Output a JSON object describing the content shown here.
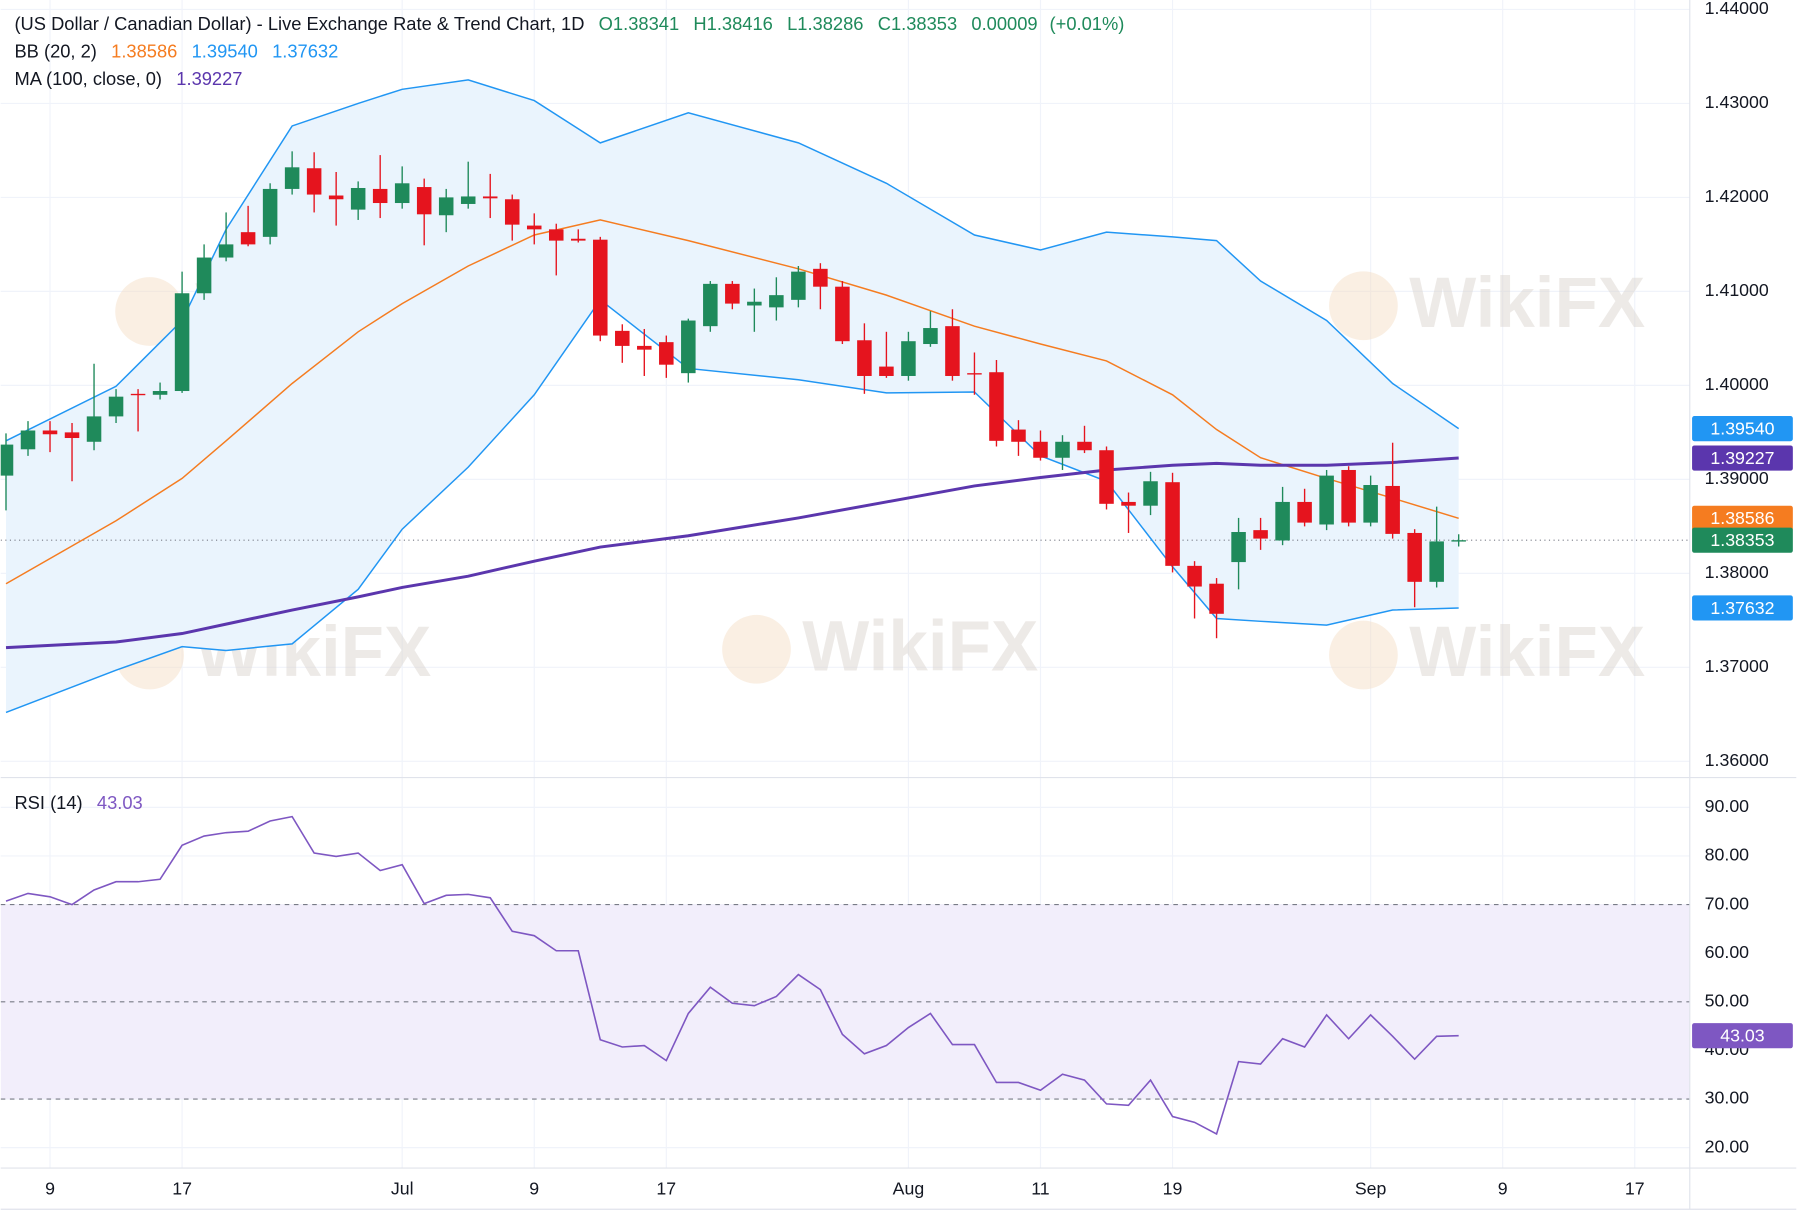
{
  "watermark": "WikiFX",
  "chart_data": [
    {
      "type": "candlestick",
      "title": "(US Dollar / Canadian Dollar) - Live Exchange Rate & Trend Chart, 1D",
      "quote": {
        "open": {
          "value": 1.38341,
          "label": "O1.38341"
        },
        "high": {
          "value": 1.38416,
          "label": "H1.38416"
        },
        "low": {
          "value": 1.38286,
          "label": "L1.38286"
        },
        "close": {
          "value": 1.38353,
          "label": "C1.38353"
        },
        "change": 9e-05,
        "change_percent": {
          "value": 0.01,
          "label": "(+0.01%)"
        }
      },
      "open": [
        1.3904,
        1.3932,
        1.3952,
        1.395,
        1.394,
        1.3967,
        1.3991,
        1.399,
        1.3994,
        1.4098,
        1.4136,
        1.4163,
        1.4158,
        1.4209,
        1.4231,
        1.4202,
        1.4187,
        1.4209,
        1.4194,
        1.4211,
        1.4181,
        1.4193,
        1.4201,
        1.4198,
        1.417,
        1.4166,
        1.4156,
        1.4155,
        1.4058,
        1.4042,
        1.4046,
        1.4013,
        1.4063,
        1.4108,
        1.4085,
        1.4083,
        1.4091,
        1.4124,
        1.4105,
        1.4048,
        1.402,
        1.401,
        1.4044,
        1.4063,
        1.4013,
        1.4014,
        1.3953,
        1.394,
        1.3923,
        1.394,
        1.3931,
        1.3876,
        1.3872,
        1.3897,
        1.3808,
        1.3789,
        1.3812,
        1.3846,
        1.3835,
        1.3876,
        1.3852,
        1.391,
        1.3854,
        1.3893,
        1.3843,
        1.3791,
        1.38341
      ],
      "high": [
        1.3949,
        1.3962,
        1.3962,
        1.396,
        1.4023,
        1.3996,
        1.3996,
        1.4003,
        1.4121,
        1.415,
        1.4184,
        1.4191,
        1.4215,
        1.4249,
        1.4248,
        1.4227,
        1.4217,
        1.4245,
        1.4233,
        1.422,
        1.4209,
        1.4238,
        1.4225,
        1.4203,
        1.4183,
        1.4172,
        1.4166,
        1.4158,
        1.4065,
        1.406,
        1.4053,
        1.4071,
        1.4111,
        1.4111,
        1.4103,
        1.4115,
        1.4127,
        1.413,
        1.4111,
        1.4066,
        1.4057,
        1.4057,
        1.4079,
        1.4081,
        1.4035,
        1.4027,
        1.3963,
        1.3952,
        1.3947,
        1.3957,
        1.3935,
        1.3886,
        1.3908,
        1.3907,
        1.3813,
        1.3795,
        1.3859,
        1.3859,
        1.3892,
        1.389,
        1.391,
        1.3914,
        1.3904,
        1.3939,
        1.3847,
        1.3871,
        1.38416
      ],
      "low": [
        1.3867,
        1.3925,
        1.3929,
        1.3898,
        1.3931,
        1.396,
        1.3951,
        1.3985,
        1.3992,
        1.4091,
        1.4132,
        1.4148,
        1.415,
        1.4203,
        1.4184,
        1.417,
        1.4176,
        1.4178,
        1.4188,
        1.4149,
        1.4163,
        1.4188,
        1.4178,
        1.4154,
        1.415,
        1.4117,
        1.4152,
        1.4047,
        1.4024,
        1.401,
        1.4008,
        1.4003,
        1.4057,
        1.4081,
        1.4057,
        1.4069,
        1.4083,
        1.4081,
        1.4044,
        1.3991,
        1.4008,
        1.4005,
        1.4041,
        1.4005,
        1.399,
        1.3935,
        1.3925,
        1.392,
        1.391,
        1.3928,
        1.3868,
        1.3843,
        1.3862,
        1.3801,
        1.3752,
        1.3731,
        1.3783,
        1.3825,
        1.383,
        1.385,
        1.3846,
        1.385,
        1.385,
        1.3837,
        1.3764,
        1.3785,
        1.38286
      ],
      "close": [
        1.3937,
        1.3952,
        1.3948,
        1.3944,
        1.3967,
        1.3988,
        1.399,
        1.3994,
        1.4098,
        1.4136,
        1.415,
        1.415,
        1.4209,
        1.4232,
        1.4203,
        1.4198,
        1.421,
        1.4194,
        1.4215,
        1.4182,
        1.42,
        1.4201,
        1.4199,
        1.4171,
        1.4166,
        1.4154,
        1.4154,
        1.4053,
        1.4042,
        1.4038,
        1.4022,
        1.4069,
        1.4108,
        1.4087,
        1.4089,
        1.4096,
        1.4121,
        1.4105,
        1.4047,
        1.401,
        1.401,
        1.4047,
        1.4061,
        1.401,
        1.4012,
        1.3941,
        1.394,
        1.3923,
        1.394,
        1.3931,
        1.3874,
        1.3872,
        1.3898,
        1.3808,
        1.3786,
        1.3757,
        1.3844,
        1.3837,
        1.3876,
        1.3854,
        1.3904,
        1.3854,
        1.3894,
        1.3842,
        1.3791,
        1.3834,
        1.38353
      ],
      "up_color": "#1f8a5b",
      "down_color": "#e5141e",
      "quote_color": "#1f8a5b",
      "overlays": [
        {
          "name": "BB (20, 2)",
          "band_fill": "#eaf4fd",
          "lines": [
            {
              "color": "#f57c20",
              "x": [
                0,
                5,
                8,
                10,
                13,
                16,
                18,
                21,
                24,
                27,
                31,
                36,
                40,
                44,
                47,
                50,
                53,
                55,
                57,
                60,
                63,
                66
              ],
              "values": [
                1.3789,
                1.3856,
                1.3901,
                1.3941,
                1.4002,
                1.4057,
                1.4087,
                1.4127,
                1.416,
                1.4176,
                1.4154,
                1.4124,
                1.4096,
                1.4063,
                1.4044,
                1.4026,
                1.399,
                1.3953,
                1.3923,
                1.3901,
                1.388,
                1.38586
              ],
              "last": 1.38586
            },
            {
              "color": "#2196f3",
              "x": [
                0,
                5,
                8,
                10,
                13,
                16,
                18,
                21,
                24,
                27,
                31,
                36,
                40,
                44,
                47,
                50,
                53,
                55,
                57,
                60,
                63,
                66
              ],
              "values": [
                1.3941,
                1.3999,
                1.4069,
                1.4166,
                1.4276,
                1.43,
                1.4315,
                1.4325,
                1.4303,
                1.4258,
                1.429,
                1.4258,
                1.4215,
                1.416,
                1.4144,
                1.4163,
                1.4158,
                1.4154,
                1.4111,
                1.4069,
                1.4002,
                1.3954
              ],
              "last": {
                "value": 1.3954,
                "label": "1.39540"
              }
            },
            {
              "color": "#2196f3",
              "x": [
                0,
                5,
                8,
                10,
                13,
                16,
                18,
                21,
                24,
                27,
                31,
                36,
                40,
                44,
                47,
                50,
                53,
                55,
                57,
                60,
                63,
                66
              ],
              "values": [
                1.3652,
                1.3697,
                1.3722,
                1.3718,
                1.3725,
                1.3783,
                1.3847,
                1.3913,
                1.399,
                1.4091,
                1.4018,
                1.4006,
                1.3992,
                1.3993,
                1.3925,
                1.3898,
                1.3807,
                1.3752,
                1.3749,
                1.3745,
                1.3761,
                1.37632
              ],
              "last": {
                "value": 1.37632,
                "label": "1.37632"
              }
            }
          ]
        },
        {
          "name": "MA (100, close, 0)",
          "lines": [
            {
              "color": "#5b36ad",
              "x": [
                0,
                5,
                8,
                10,
                13,
                16,
                18,
                21,
                24,
                27,
                31,
                36,
                40,
                44,
                47,
                50,
                53,
                55,
                57,
                60,
                63,
                66
              ],
              "values": [
                1.3721,
                1.3727,
                1.3736,
                1.3746,
                1.3761,
                1.3775,
                1.3785,
                1.3797,
                1.3813,
                1.3828,
                1.384,
                1.3859,
                1.3876,
                1.3893,
                1.3902,
                1.391,
                1.3915,
                1.3917,
                1.3915,
                1.3915,
                1.3918,
                1.39227
              ],
              "last": 1.39227
            }
          ]
        }
      ],
      "ylim": [
        1.3584,
        1.441
      ],
      "yticks": [
        {
          "value": 1.36,
          "label": "1.36000"
        },
        {
          "value": 1.37,
          "label": "1.37000"
        },
        {
          "value": 1.38,
          "label": "1.38000"
        },
        {
          "value": 1.39,
          "label": "1.39000"
        },
        {
          "value": 1.4,
          "label": "1.40000"
        },
        {
          "value": 1.41,
          "label": "1.41000"
        },
        {
          "value": 1.42,
          "label": "1.42000"
        },
        {
          "value": 1.43,
          "label": "1.43000"
        },
        {
          "value": 1.44,
          "label": "1.44000"
        }
      ],
      "grid": true
    },
    {
      "type": "line",
      "series": [
        {
          "name": "RSI (14)",
          "color": "#7e57c2",
          "values": [
            70.7,
            72.3,
            71.6,
            70.0,
            73.0,
            74.7,
            74.7,
            75.2,
            82.2,
            84.1,
            84.8,
            85.1,
            87.2,
            88.1,
            80.6,
            79.9,
            80.6,
            77.0,
            78.2,
            70.2,
            71.9,
            72.1,
            71.4,
            64.5,
            63.6,
            60.5,
            60.5,
            42.2,
            40.7,
            41.0,
            37.9,
            47.6,
            53.0,
            49.7,
            49.2,
            51.1,
            55.6,
            52.5,
            43.3,
            39.3,
            41.0,
            44.7,
            47.6,
            41.2,
            41.2,
            33.4,
            33.4,
            31.8,
            35.1,
            33.9,
            29.0,
            28.7,
            33.9,
            26.4,
            25.2,
            22.8,
            37.7,
            37.2,
            42.4,
            40.7,
            47.3,
            42.4,
            47.3,
            42.9,
            38.2,
            42.9,
            43.03
          ]
        }
      ],
      "levels": [
        30,
        50,
        70
      ],
      "band_color": "#f2eefb",
      "ylim": [
        15.8,
        95.9
      ],
      "yticks": [
        {
          "value": 20,
          "label": "20.00"
        },
        {
          "value": 30,
          "label": "30.00"
        },
        {
          "value": 40,
          "label": "40.00"
        },
        {
          "value": 50,
          "label": "50.00"
        },
        {
          "value": 60,
          "label": "60.00"
        },
        {
          "value": 70,
          "label": "70.00"
        },
        {
          "value": 80,
          "label": "80.00"
        },
        {
          "value": 90,
          "label": "90.00"
        }
      ],
      "xlim": [
        -0.24,
        76.5
      ],
      "xticks": [
        {
          "value": 2,
          "label": "9"
        },
        {
          "value": 8,
          "label": "17"
        },
        {
          "value": 18,
          "label": "Jul"
        },
        {
          "value": 24,
          "label": "9"
        },
        {
          "value": 30,
          "label": "17"
        },
        {
          "value": 41,
          "label": "Aug"
        },
        {
          "value": 47,
          "label": "11"
        },
        {
          "value": 53,
          "label": "19"
        },
        {
          "value": 62,
          "label": "Sep"
        },
        {
          "value": 68,
          "label": "9"
        },
        {
          "value": 74,
          "label": "17"
        }
      ],
      "grid": true
    }
  ]
}
